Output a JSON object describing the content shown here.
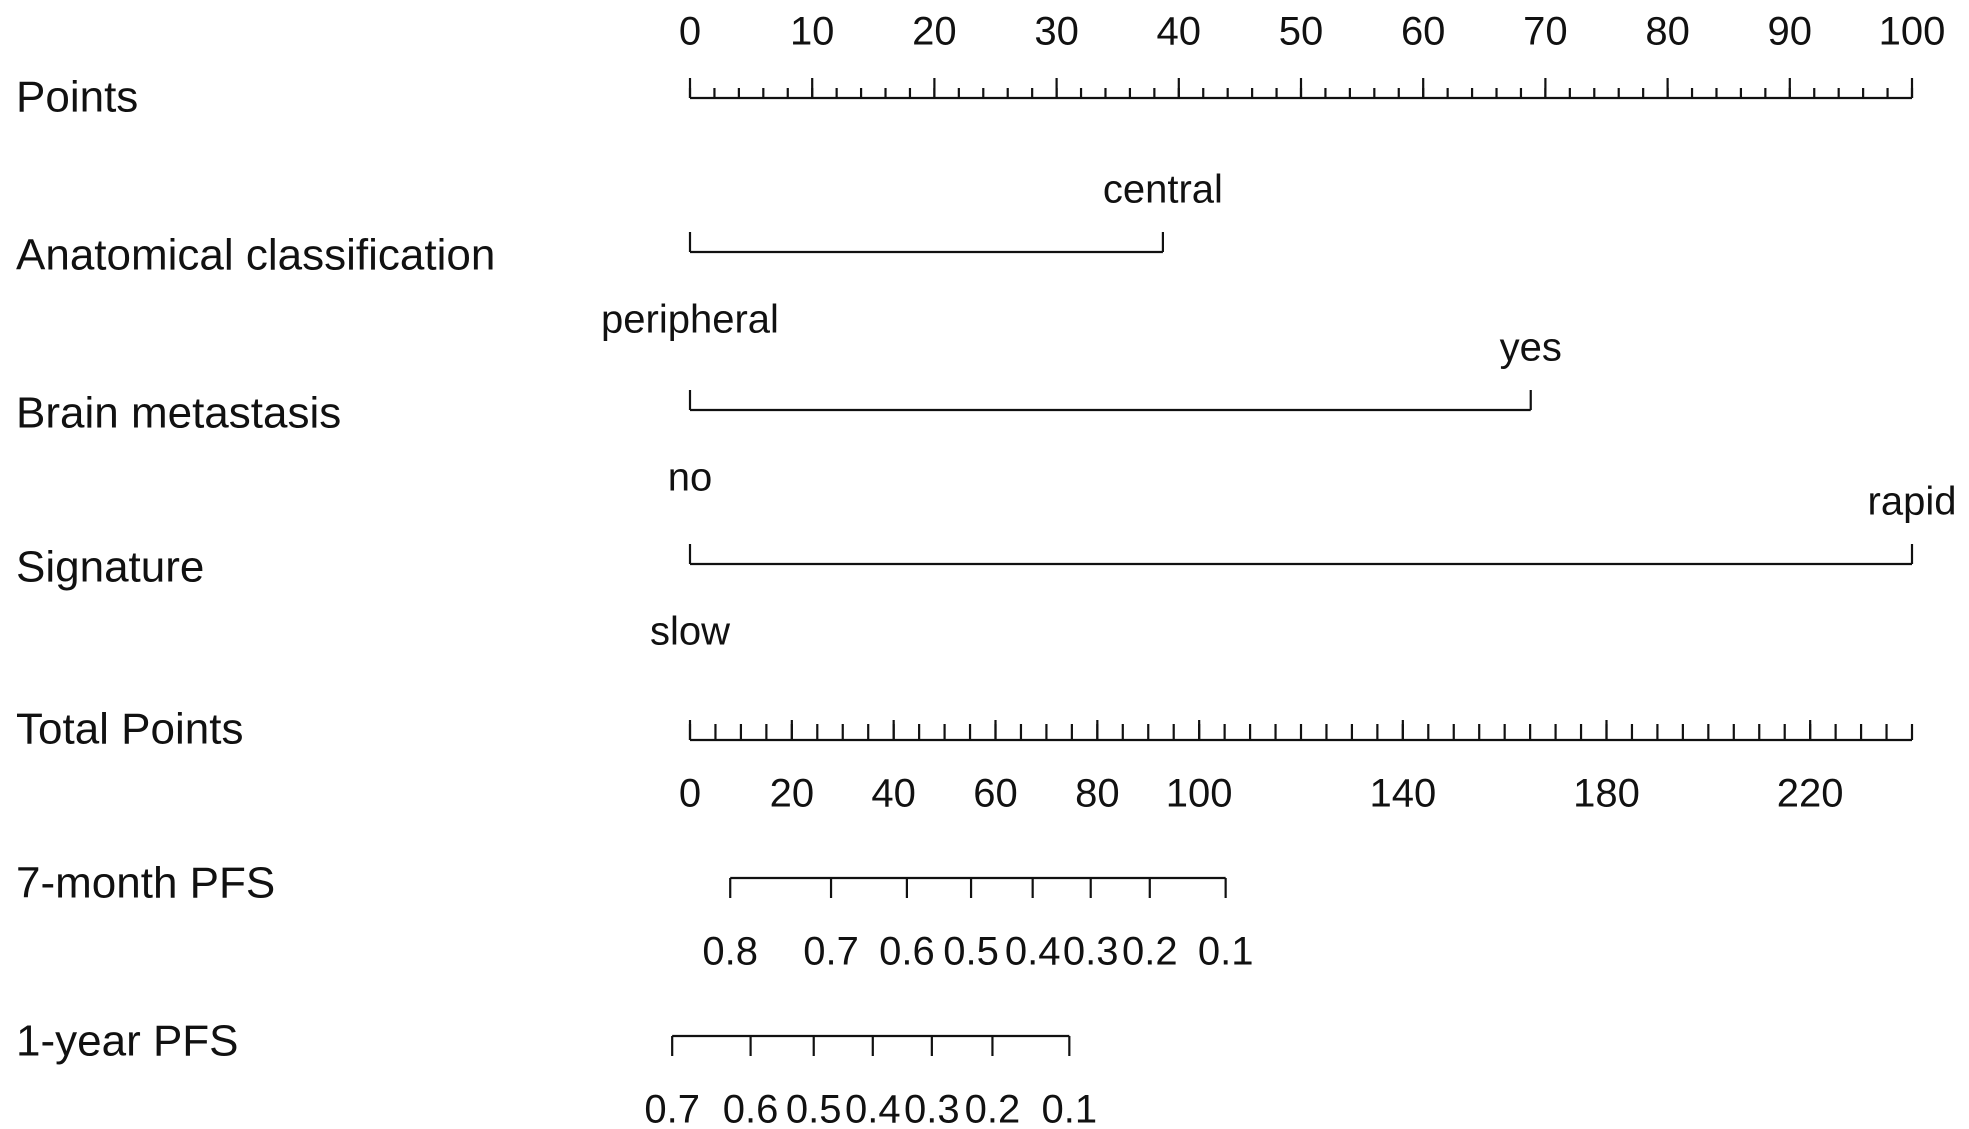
{
  "chart_data": {
    "type": "nomogram",
    "points_axis": {
      "label": "Points",
      "xlim": [
        0,
        100
      ],
      "xticks": [
        0,
        10,
        20,
        30,
        40,
        50,
        60,
        70,
        80,
        90,
        100
      ],
      "minor_ticks": [
        0,
        2,
        4,
        6,
        8,
        10,
        12,
        14,
        16,
        18,
        20,
        22,
        24,
        26,
        28,
        30,
        32,
        34,
        36,
        38,
        40,
        42,
        44,
        46,
        48,
        50,
        52,
        54,
        56,
        58,
        60,
        62,
        64,
        66,
        68,
        70,
        72,
        74,
        76,
        78,
        80,
        82,
        84,
        86,
        88,
        90,
        92,
        94,
        96,
        98,
        100
      ]
    },
    "variables": [
      {
        "name": "Anatomical classification",
        "levels": [
          {
            "label": "peripheral",
            "points": 0
          },
          {
            "label": "central",
            "points": 38.7
          }
        ]
      },
      {
        "name": "Brain metastasis",
        "levels": [
          {
            "label": "no",
            "points": 0
          },
          {
            "label": "yes",
            "points": 68.8
          }
        ]
      },
      {
        "name": "Signature",
        "levels": [
          {
            "label": "slow",
            "points": 0
          },
          {
            "label": "rapid",
            "points": 100
          }
        ]
      }
    ],
    "total_axis": {
      "label": "Total Points",
      "xlim": [
        0,
        240
      ],
      "xticks": [
        0,
        20,
        40,
        60,
        80,
        100,
        140,
        180,
        220
      ],
      "minor_ticks": [
        0,
        5,
        10,
        15,
        20,
        25,
        30,
        35,
        40,
        45,
        50,
        55,
        60,
        65,
        70,
        75,
        80,
        85,
        90,
        95,
        100,
        105,
        110,
        115,
        120,
        125,
        130,
        135,
        140,
        145,
        150,
        155,
        160,
        165,
        170,
        175,
        180,
        185,
        190,
        195,
        200,
        205,
        210,
        215,
        220,
        225,
        230,
        235,
        240
      ]
    },
    "outcomes": [
      {
        "name": "7-month PFS",
        "ticks": [
          {
            "value": 0.8,
            "points": 7.9
          },
          {
            "value": 0.7,
            "points": 27.7
          },
          {
            "value": 0.6,
            "points": 42.6
          },
          {
            "value": 0.5,
            "points": 55.2
          },
          {
            "value": 0.4,
            "points": 67.3
          },
          {
            "value": 0.3,
            "points": 78.7
          },
          {
            "value": 0.2,
            "points": 90.3
          },
          {
            "value": 0.1,
            "points": 105.2
          }
        ]
      },
      {
        "name": "1-year PFS",
        "ticks": [
          {
            "value": 0.7,
            "points": -3.5
          },
          {
            "value": 0.6,
            "points": 11.9
          },
          {
            "value": 0.5,
            "points": 24.3
          },
          {
            "value": 0.4,
            "points": 35.9
          },
          {
            "value": 0.3,
            "points": 47.5
          },
          {
            "value": 0.2,
            "points": 59.4
          },
          {
            "value": 0.1,
            "points": 74.5
          }
        ]
      }
    ]
  }
}
